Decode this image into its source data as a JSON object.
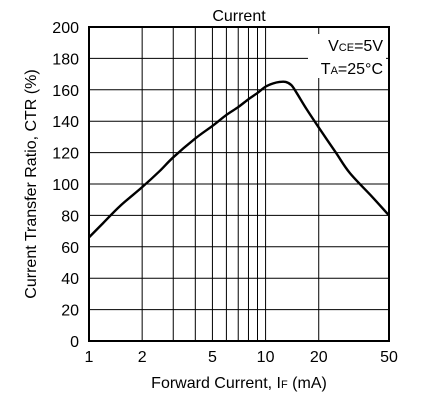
{
  "chart_data": {
    "type": "line",
    "title": "Current",
    "xlabel_main": "Forward Current, I",
    "xlabel_sub": "F",
    "xlabel_unit": " (mA)",
    "ylabel": "Current Transfer Ratio, CTR (%)",
    "x_scale": "log",
    "xlim": [
      1,
      50
    ],
    "ylim": [
      0,
      200
    ],
    "x_ticks": [
      1,
      2,
      5,
      10,
      20,
      50
    ],
    "x_tick_labels": [
      "1",
      "2",
      "5",
      "10",
      "20",
      "50"
    ],
    "x_grid": [
      1,
      2,
      3,
      4,
      5,
      6,
      7,
      8,
      9,
      10,
      20,
      50
    ],
    "y_ticks": [
      0,
      20,
      40,
      60,
      80,
      100,
      120,
      140,
      160,
      180,
      200
    ],
    "y_tick_labels": [
      "0",
      "20",
      "40",
      "60",
      "80",
      "100",
      "120",
      "140",
      "160",
      "180",
      "200"
    ],
    "grid": true,
    "conditions": [
      {
        "main": "V",
        "sub": "CE",
        "rest": "=5V"
      },
      {
        "main": "T",
        "sub": "A",
        "rest": "=25°C"
      }
    ],
    "series": [
      {
        "x": [
          1,
          1.2,
          1.5,
          2,
          2.5,
          3,
          4,
          5,
          6,
          7,
          8,
          9,
          10,
          11,
          12,
          13,
          14,
          15,
          17,
          20,
          25,
          30,
          40,
          50
        ],
        "y": [
          66,
          75,
          86,
          98,
          108,
          117,
          129,
          137,
          144,
          149,
          154,
          158,
          162,
          164,
          165,
          165,
          163,
          158,
          148,
          136,
          120,
          107,
          92,
          80
        ]
      }
    ]
  }
}
